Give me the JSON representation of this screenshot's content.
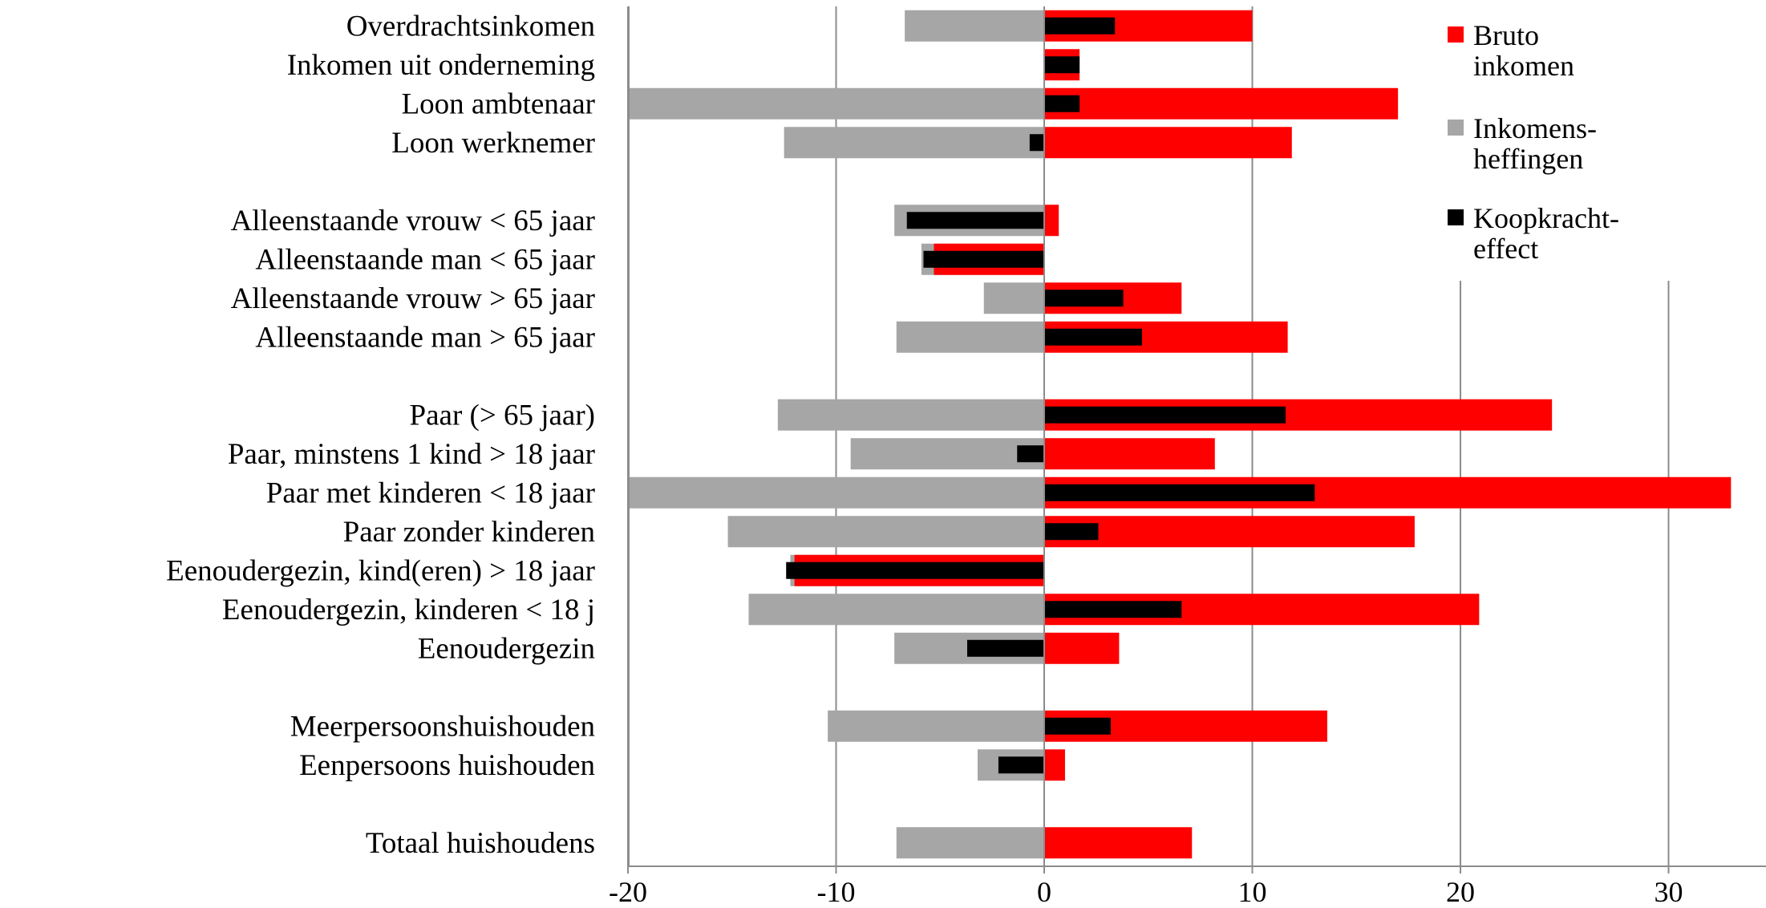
{
  "chart_data": {
    "type": "bar",
    "orientation": "horizontal",
    "title": "",
    "xlabel": "",
    "ylabel": "",
    "xlim": [
      -20,
      35
    ],
    "x_ticks": [
      -20,
      -10,
      0,
      10,
      20,
      30
    ],
    "grid": "vertical",
    "legend_position": "top-right",
    "categories": [
      "Overdrachtsinkomen",
      "Inkomen uit onderneming",
      "Loon ambtenaar",
      "Loon werknemer",
      "",
      "Alleenstaande vrouw < 65 jaar",
      "Alleenstaande man < 65 jaar",
      "Alleenstaande vrouw > 65 jaar",
      "Alleenstaande man > 65 jaar",
      "",
      "Paar (> 65 jaar)",
      "Paar, minstens 1 kind > 18 jaar",
      "Paar met kinderen < 18 jaar",
      "Paar zonder kinderen",
      "Eenoudergezin, kind(eren) > 18 jaar",
      "Eenoudergezin, kinderen < 18 j",
      "Eenoudergezin",
      "",
      "Meerpersoonshuishouden",
      "Eenpersoons huishouden",
      "",
      "Totaal huishoudens"
    ],
    "series": [
      {
        "name": "Bruto inkomen",
        "color": "#ff0000",
        "values": [
          10.0,
          1.7,
          17.0,
          11.9,
          null,
          0.7,
          -5.3,
          6.6,
          11.7,
          null,
          24.4,
          8.2,
          33.0,
          17.8,
          -12.0,
          20.9,
          3.6,
          null,
          13.6,
          1.0,
          null,
          7.1
        ]
      },
      {
        "name": "Inkomens-heffingen",
        "color": "#a6a6a6",
        "values": [
          -6.7,
          0,
          -20.0,
          -12.5,
          null,
          -7.2,
          -5.9,
          -2.9,
          -7.1,
          null,
          -12.8,
          -9.3,
          -20.0,
          -15.2,
          -12.2,
          -14.2,
          -7.2,
          null,
          -10.4,
          -3.2,
          null,
          -7.1
        ]
      },
      {
        "name": "Koopkracht-effect",
        "color": "#000000",
        "values": [
          3.4,
          1.7,
          1.7,
          -0.7,
          null,
          -6.6,
          -5.8,
          3.8,
          4.7,
          null,
          11.6,
          -1.3,
          13.0,
          2.6,
          -12.4,
          6.6,
          -3.7,
          null,
          3.2,
          -2.2,
          null,
          0
        ]
      }
    ]
  }
}
